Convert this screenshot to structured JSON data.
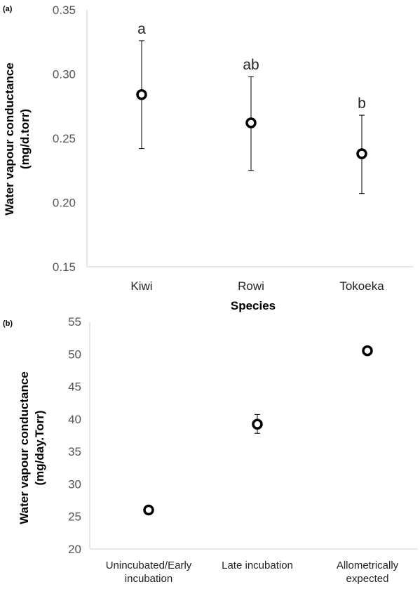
{
  "chart_data": [
    {
      "panel": "(a)",
      "type": "scatter",
      "ylabel_line1": "Water vapour conductance",
      "ylabel_line2": "(mg/d.torr)",
      "xlabel": "Species",
      "categories": [
        "Kiwi",
        "Rowi",
        "Tokoeka"
      ],
      "values": [
        0.284,
        0.262,
        0.238
      ],
      "error_upper": [
        0.326,
        0.298,
        0.268
      ],
      "error_lower": [
        0.242,
        0.225,
        0.207
      ],
      "annotations": [
        "a",
        "ab",
        "b"
      ],
      "ylim": [
        0.15,
        0.35
      ],
      "yticks": [
        "0.15",
        "0.20",
        "0.25",
        "0.30",
        "0.35"
      ],
      "grid": false,
      "marker": "open-circle"
    },
    {
      "panel": "(b)",
      "type": "scatter",
      "ylabel_line1": "Water vapour conductance",
      "ylabel_line2": "(mg/day.Torr)",
      "xlabel": "",
      "categories": [
        [
          "Unincubated/Early",
          "incubation"
        ],
        [
          "Late incubation"
        ],
        [
          "Allometrically",
          "expected"
        ]
      ],
      "values": [
        26.0,
        39.2,
        50.5
      ],
      "error_upper": [
        null,
        40.7,
        null
      ],
      "error_lower": [
        null,
        37.8,
        null
      ],
      "ylim": [
        20,
        55
      ],
      "yticks": [
        "20",
        "25",
        "30",
        "35",
        "40",
        "45",
        "50",
        "55"
      ],
      "grid": false,
      "marker": "open-circle"
    }
  ]
}
